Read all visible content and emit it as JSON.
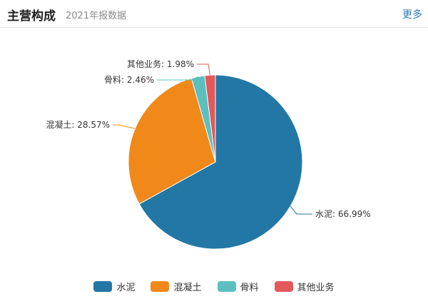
{
  "header": {
    "title": "主营构成",
    "subtitle": "2021年报数据",
    "more_label": "更多"
  },
  "chart_data": {
    "type": "pie",
    "slices": [
      {
        "name": "水泥",
        "value": 66.99,
        "label": "水泥: 66.99%",
        "color": "#2377a4"
      },
      {
        "name": "混凝土",
        "value": 28.57,
        "label": "混凝土: 28.57%",
        "color": "#f0891a"
      },
      {
        "name": "骨料",
        "value": 2.46,
        "label": "骨料: 2.46%",
        "color": "#5bbfbf"
      },
      {
        "name": "其他业务",
        "value": 1.98,
        "label": "其他业务: 1.98%",
        "color": "#e2595b"
      }
    ],
    "legend_position": "bottom"
  }
}
